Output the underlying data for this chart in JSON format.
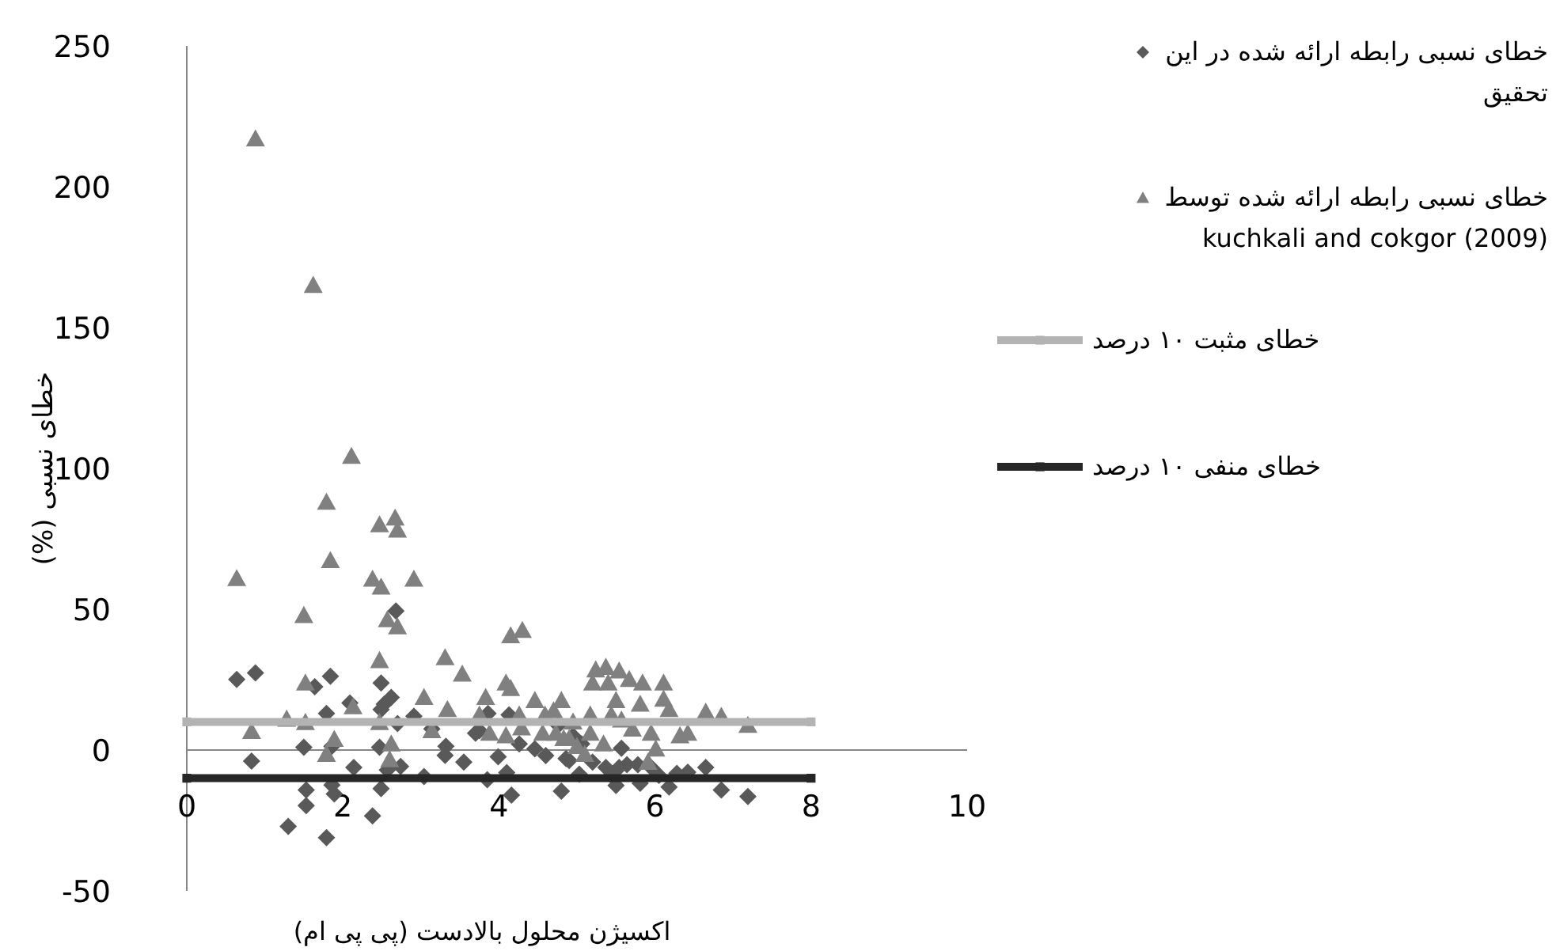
{
  "chart_data": {
    "type": "scatter",
    "xlabel": "اکسیژن محلول بالادست (پی پی ام)",
    "ylabel": "خطای نسبی (%)",
    "xlim": [
      0,
      10
    ],
    "xticks": [
      0,
      2,
      4,
      6,
      8,
      10
    ],
    "ylim": [
      -50,
      250
    ],
    "yticks": [
      -50,
      0,
      50,
      100,
      150,
      200,
      250
    ],
    "grid": false,
    "legend": "right",
    "series": [
      {
        "name": "خطای نسبی رابطه ارائه شده در این تحقیق",
        "type": "scatter",
        "marker": "diamond",
        "color": "#595959",
        "x": [
          0.64,
          0.88,
          1.64,
          1.84,
          2.68,
          2.49,
          2.09,
          1.79,
          2.53,
          2.62,
          2.49,
          2.7,
          2.91,
          3.14,
          3.75,
          3.86,
          4.13,
          0.83,
          1.5,
          1.86,
          2.47,
          2.14,
          3.32,
          3.31,
          3.55,
          2.57,
          2.74,
          3.04,
          3.85,
          3.99,
          4.1,
          3.7,
          1.53,
          1.53,
          1.86,
          1.89,
          2.49,
          2.38,
          1.3,
          1.79,
          4.16,
          4.8,
          4.26,
          4.46,
          4.76,
          4.86,
          6.65,
          6.85,
          7.19,
          6.42,
          6.28,
          6.18,
          5.5,
          5.81,
          4.9,
          5.03,
          5.2,
          5.37,
          5.57,
          5.64,
          5.95,
          6.05,
          5.54,
          5.06,
          5.44,
          5.78,
          4.6,
          4.95
        ],
        "values": [
          25.1,
          27.4,
          22.5,
          26.2,
          49.4,
          23.8,
          16.7,
          13,
          16.3,
          18.7,
          14.4,
          9.4,
          12,
          7.5,
          6.9,
          13,
          12.5,
          -3.9,
          1,
          1.3,
          1,
          -6.2,
          1.3,
          -1.9,
          -4.3,
          -7.1,
          -5.8,
          -9.4,
          -10.5,
          -2.4,
          -8,
          6,
          -14.2,
          -19.7,
          -12.4,
          -15.6,
          -13.7,
          -23.4,
          -27.1,
          -31.1,
          -16,
          -14.6,
          2.2,
          0.4,
          8.8,
          -3,
          -6.2,
          -14.2,
          -16.5,
          -7.9,
          -8.3,
          -13.1,
          -12.6,
          -11.8,
          -3.7,
          -8.6,
          -4.3,
          -6.2,
          0.6,
          -5.2,
          -6.2,
          -9,
          -6.2,
          2.2,
          -9,
          -5.2,
          -2,
          5
        ]
      },
      {
        "name": "خطای نسبی رابطه ارائه شده توسط kuchkali and cokgor (2009)",
        "type": "scatter",
        "marker": "triangle",
        "color": "#808080",
        "x": [
          0.88,
          1.62,
          2.11,
          1.79,
          1.84,
          0.64,
          2.47,
          2.67,
          2.7,
          2.38,
          2.49,
          2.91,
          1.5,
          2.57,
          2.7,
          4.15,
          4.3,
          2.47,
          3.31,
          3.53,
          1.52,
          2.13,
          3.04,
          3.34,
          4.09,
          4.15,
          3.83,
          3.75,
          4.46,
          4.8,
          1.28,
          1.52,
          0.83,
          2.47,
          1.89,
          1.79,
          2.62,
          2.6,
          3.14,
          3.88,
          4.09,
          4.26,
          4.29,
          4.56,
          4.59,
          4.83,
          5.24,
          5.37,
          5.54,
          5.67,
          5.84,
          6.11,
          5.2,
          5.4,
          5.5,
          5.81,
          6.11,
          6.18,
          5.17,
          5.44,
          5.57,
          6.65,
          6.85,
          7.19,
          5.71,
          5.95,
          6.32,
          6.42,
          5.17,
          4.9,
          5.34,
          6.01,
          5.91,
          5.1,
          4.73,
          5.0,
          4.95,
          4.7
        ],
        "values": [
          217,
          165,
          104.3,
          88,
          67.3,
          60.9,
          80,
          82.4,
          78.1,
          60.7,
          57.9,
          60.7,
          47.8,
          46.3,
          43.8,
          40.6,
          42.5,
          31.8,
          32.8,
          27,
          23.8,
          15.4,
          18.7,
          14.4,
          23.8,
          21.9,
          18.7,
          12.5,
          17.6,
          17.6,
          11,
          9.8,
          6.6,
          9.8,
          3.8,
          -1.5,
          2.2,
          -3.4,
          6.9,
          6,
          5.1,
          12.5,
          7.9,
          6,
          12.5,
          4.1,
          28.5,
          29.4,
          28.1,
          25.1,
          23.8,
          23.8,
          23.8,
          23.8,
          17.6,
          16.3,
          18.1,
          14.4,
          12.5,
          12.5,
          10.7,
          13.5,
          12,
          8.8,
          7.5,
          6,
          5.1,
          6,
          6,
          4.1,
          2.2,
          0.4,
          -4.3,
          -1.5,
          6,
          1.3,
          10,
          14
        ]
      },
      {
        "name": "خطای مثبت ۱۰ درصد",
        "type": "line",
        "marker": "square",
        "color": "#b3b3b3",
        "x": [
          0,
          8
        ],
        "values": [
          10,
          10
        ]
      },
      {
        "name": "خطای منفی ۱۰ درصد",
        "type": "line",
        "marker": "square",
        "color": "#262626",
        "x": [
          0,
          8
        ],
        "values": [
          -10,
          -10
        ]
      }
    ]
  }
}
